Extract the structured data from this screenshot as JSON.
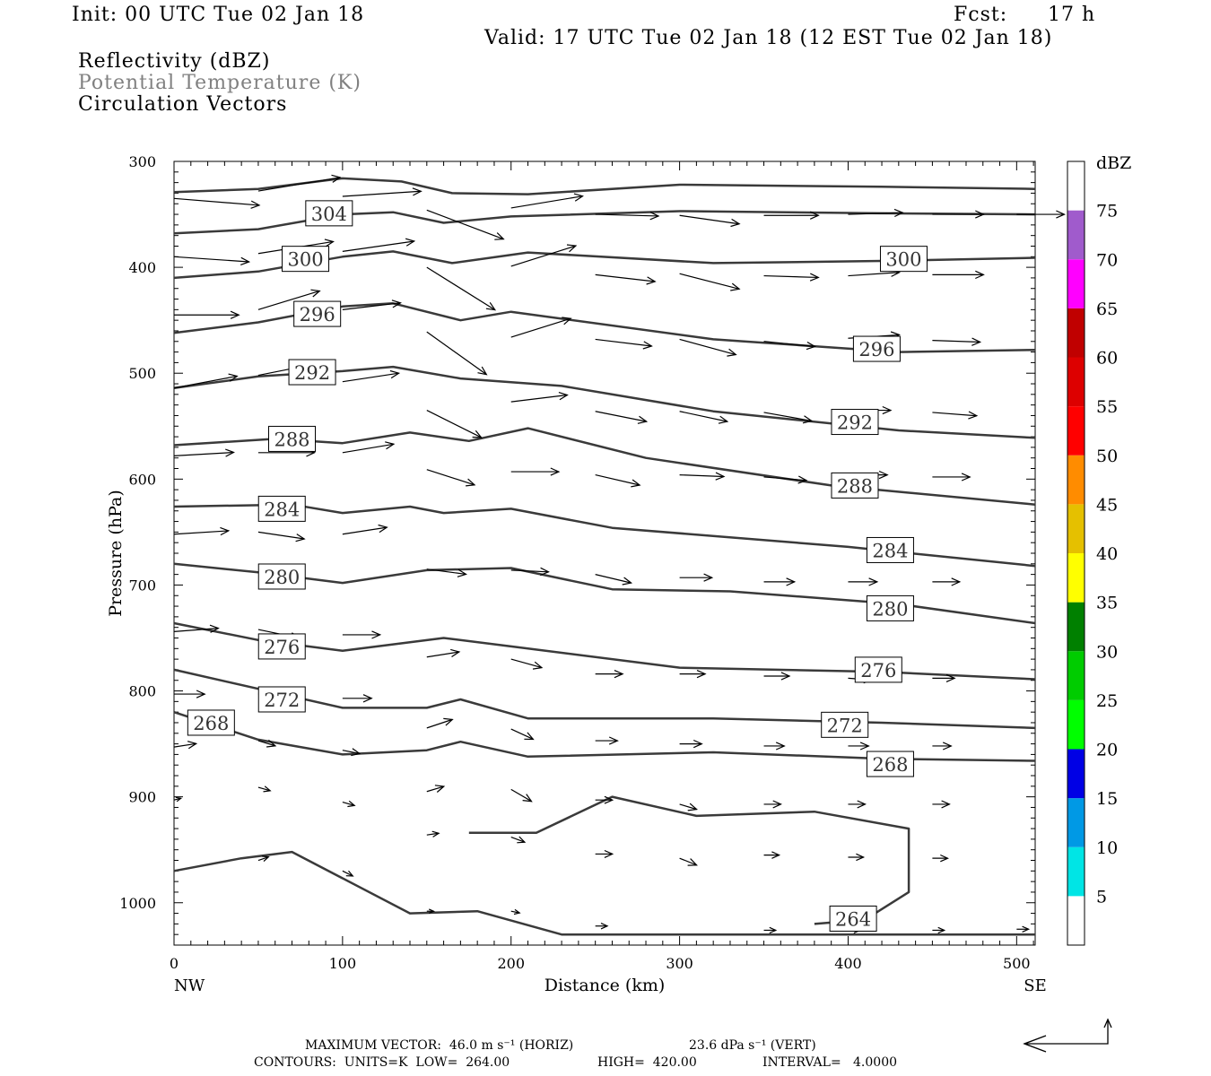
{
  "header": {
    "init": "Init: 00 UTC Tue 02 Jan 18",
    "fcst_label": "Fcst:",
    "fcst_value": "17 h",
    "valid": "Valid: 17 UTC Tue 02 Jan 18 (12 EST Tue 02 Jan 18)",
    "fields": [
      "Reflectivity (dBZ)",
      "Potential Temperature (K)",
      "Circulation Vectors"
    ]
  },
  "colorbar": {
    "title": "dBZ",
    "levels": [
      "5",
      "10",
      "15",
      "20",
      "25",
      "30",
      "35",
      "40",
      "45",
      "50",
      "55",
      "60",
      "65",
      "70",
      "75"
    ],
    "colors": [
      "#00e5e5",
      "#0099e5",
      "#0000e5",
      "#00ff00",
      "#00cc00",
      "#008000",
      "#ffff00",
      "#e5c000",
      "#ff8c00",
      "#ff0000",
      "#dd0000",
      "#c00000",
      "#ff00ff",
      "#a05bcc",
      "#ffffff"
    ]
  },
  "footer": {
    "max_vector": "MAXIMUM VECTOR:  46.0 m s⁻¹ (HORIZ)",
    "vert_vector": "23.6 dPa s⁻¹ (VERT)",
    "contours": "CONTOURS:  UNITS=K  LOW=  264.00",
    "high": "HIGH=  420.00",
    "interval": "INTERVAL=   4.0000"
  },
  "chart_data": {
    "type": "line",
    "xlabel": "Distance (km)",
    "ylabel": "Pressure (hPa)",
    "xlim": [
      0,
      511
    ],
    "ylim": [
      1040,
      300
    ],
    "x_ticks": [
      "0",
      "100",
      "200",
      "300",
      "400",
      "500"
    ],
    "y_ticks": [
      "300",
      "400",
      "500",
      "600",
      "700",
      "800",
      "900",
      "1000"
    ],
    "x_end_labels": [
      "NW",
      "SE"
    ],
    "grid": false,
    "series": [
      {
        "name": "304",
        "values": [
          [
            0,
            329
          ],
          [
            50,
            326
          ],
          [
            100,
            316
          ],
          [
            135,
            319
          ],
          [
            165,
            330
          ],
          [
            210,
            331
          ],
          [
            300,
            322
          ],
          [
            420,
            324
          ],
          [
            511,
            326
          ]
        ]
      },
      {
        "name": "304",
        "values": [
          [
            0,
            368
          ],
          [
            50,
            364
          ],
          [
            100,
            350
          ],
          [
            130,
            348
          ],
          [
            160,
            358
          ],
          [
            200,
            352
          ],
          [
            300,
            347
          ],
          [
            420,
            349
          ],
          [
            511,
            350
          ]
        ]
      },
      {
        "name": "300",
        "values": [
          [
            0,
            410
          ],
          [
            50,
            404
          ],
          [
            100,
            390
          ],
          [
            130,
            385
          ],
          [
            165,
            396
          ],
          [
            210,
            386
          ],
          [
            320,
            396
          ],
          [
            420,
            394
          ],
          [
            511,
            391
          ]
        ]
      },
      {
        "name": "296",
        "values": [
          [
            0,
            462
          ],
          [
            50,
            452
          ],
          [
            100,
            437
          ],
          [
            130,
            434
          ],
          [
            170,
            450
          ],
          [
            200,
            442
          ],
          [
            320,
            468
          ],
          [
            430,
            480
          ],
          [
            511,
            478
          ]
        ]
      },
      {
        "name": "292",
        "values": [
          [
            0,
            514
          ],
          [
            50,
            503
          ],
          [
            100,
            498
          ],
          [
            130,
            494
          ],
          [
            170,
            505
          ],
          [
            230,
            512
          ],
          [
            320,
            536
          ],
          [
            430,
            554
          ],
          [
            511,
            561
          ]
        ]
      },
      {
        "name": "288",
        "values": [
          [
            0,
            568
          ],
          [
            60,
            562
          ],
          [
            100,
            566
          ],
          [
            140,
            556
          ],
          [
            175,
            564
          ],
          [
            210,
            552
          ],
          [
            280,
            580
          ],
          [
            390,
            606
          ],
          [
            511,
            624
          ]
        ]
      },
      {
        "name": "284",
        "values": [
          [
            0,
            626
          ],
          [
            70,
            624
          ],
          [
            100,
            632
          ],
          [
            140,
            626
          ],
          [
            160,
            632
          ],
          [
            200,
            628
          ],
          [
            260,
            646
          ],
          [
            400,
            664
          ],
          [
            511,
            682
          ]
        ]
      },
      {
        "name": "280",
        "values": [
          [
            0,
            680
          ],
          [
            50,
            688
          ],
          [
            100,
            698
          ],
          [
            150,
            686
          ],
          [
            200,
            684
          ],
          [
            260,
            704
          ],
          [
            330,
            706
          ],
          [
            430,
            718
          ],
          [
            511,
            736
          ]
        ]
      },
      {
        "name": "276",
        "values": [
          [
            0,
            736
          ],
          [
            50,
            752
          ],
          [
            100,
            762
          ],
          [
            160,
            750
          ],
          [
            200,
            758
          ],
          [
            300,
            778
          ],
          [
            420,
            782
          ],
          [
            511,
            789
          ]
        ]
      },
      {
        "name": "272",
        "values": [
          [
            0,
            780
          ],
          [
            50,
            798
          ],
          [
            100,
            816
          ],
          [
            150,
            816
          ],
          [
            170,
            808
          ],
          [
            210,
            826
          ],
          [
            320,
            826
          ],
          [
            420,
            830
          ],
          [
            511,
            835
          ]
        ]
      },
      {
        "name": "268",
        "values": [
          [
            0,
            820
          ],
          [
            50,
            846
          ],
          [
            100,
            860
          ],
          [
            150,
            856
          ],
          [
            170,
            848
          ],
          [
            210,
            862
          ],
          [
            320,
            858
          ],
          [
            420,
            864
          ],
          [
            511,
            866
          ]
        ]
      },
      {
        "name": "264",
        "values": [
          [
            0,
            970
          ],
          [
            40,
            958
          ],
          [
            70,
            952
          ],
          [
            140,
            1010
          ],
          [
            180,
            1008
          ],
          [
            230,
            1030
          ],
          [
            380,
            1030
          ],
          [
            511,
            1030
          ]
        ]
      },
      {
        "name": "264",
        "values": [
          [
            175,
            934
          ],
          [
            215,
            934
          ],
          [
            260,
            900
          ],
          [
            310,
            918
          ],
          [
            380,
            914
          ],
          [
            436,
            930
          ],
          [
            436,
            990
          ],
          [
            410,
            1016
          ],
          [
            380,
            1020
          ]
        ]
      }
    ],
    "contour_labels": [
      {
        "text": "304",
        "x": 92,
        "y": 349
      },
      {
        "text": "300",
        "x": 78,
        "y": 392
      },
      {
        "text": "300",
        "x": 433,
        "y": 392
      },
      {
        "text": "296",
        "x": 85,
        "y": 444
      },
      {
        "text": "296",
        "x": 417,
        "y": 477
      },
      {
        "text": "292",
        "x": 82,
        "y": 499
      },
      {
        "text": "292",
        "x": 404,
        "y": 546
      },
      {
        "text": "288",
        "x": 70,
        "y": 562
      },
      {
        "text": "288",
        "x": 404,
        "y": 606
      },
      {
        "text": "284",
        "x": 64,
        "y": 628
      },
      {
        "text": "284",
        "x": 425,
        "y": 667
      },
      {
        "text": "280",
        "x": 64,
        "y": 692
      },
      {
        "text": "280",
        "x": 425,
        "y": 722
      },
      {
        "text": "276",
        "x": 64,
        "y": 758
      },
      {
        "text": "276",
        "x": 418,
        "y": 780
      },
      {
        "text": "272",
        "x": 64,
        "y": 808
      },
      {
        "text": "272",
        "x": 398,
        "y": 832
      },
      {
        "text": "268",
        "x": 22,
        "y": 830
      },
      {
        "text": "268",
        "x": 425,
        "y": 869
      },
      {
        "text": "264",
        "x": 403,
        "y": 1015
      }
    ],
    "vectors": [
      {
        "x": 0,
        "y": 335,
        "u": 50,
        "v": 4
      },
      {
        "x": 50,
        "y": 328,
        "u": 48,
        "v": -8
      },
      {
        "x": 100,
        "y": 333,
        "u": 46,
        "v": -3
      },
      {
        "x": 150,
        "y": 346,
        "u": 45,
        "v": 17
      },
      {
        "x": 200,
        "y": 344,
        "u": 42,
        "v": -7
      },
      {
        "x": 250,
        "y": 350,
        "u": 37,
        "v": 1
      },
      {
        "x": 300,
        "y": 351,
        "u": 35,
        "v": 5
      },
      {
        "x": 350,
        "y": 351,
        "u": 32,
        "v": 0
      },
      {
        "x": 400,
        "y": 350,
        "u": 32,
        "v": -1
      },
      {
        "x": 450,
        "y": 350,
        "u": 30,
        "v": 0
      },
      {
        "x": 500,
        "y": 350,
        "u": 28,
        "v": 0
      },
      {
        "x": 0,
        "y": 390,
        "u": 44,
        "v": 3
      },
      {
        "x": 50,
        "y": 387,
        "u": 44,
        "v": -7
      },
      {
        "x": 100,
        "y": 385,
        "u": 42,
        "v": -6
      },
      {
        "x": 150,
        "y": 400,
        "u": 40,
        "v": 25
      },
      {
        "x": 200,
        "y": 399,
        "u": 38,
        "v": -12
      },
      {
        "x": 250,
        "y": 407,
        "u": 35,
        "v": 4
      },
      {
        "x": 300,
        "y": 406,
        "u": 35,
        "v": 9
      },
      {
        "x": 350,
        "y": 408,
        "u": 32,
        "v": 1
      },
      {
        "x": 400,
        "y": 408,
        "u": 30,
        "v": -2
      },
      {
        "x": 450,
        "y": 407,
        "u": 30,
        "v": 0
      },
      {
        "x": 0,
        "y": 445,
        "u": 38,
        "v": 0
      },
      {
        "x": 50,
        "y": 440,
        "u": 36,
        "v": -11
      },
      {
        "x": 100,
        "y": 440,
        "u": 34,
        "v": -4
      },
      {
        "x": 150,
        "y": 461,
        "u": 35,
        "v": 25
      },
      {
        "x": 200,
        "y": 466,
        "u": 35,
        "v": -11
      },
      {
        "x": 250,
        "y": 468,
        "u": 33,
        "v": 4
      },
      {
        "x": 300,
        "y": 468,
        "u": 33,
        "v": 9
      },
      {
        "x": 350,
        "y": 470,
        "u": 30,
        "v": 3
      },
      {
        "x": 400,
        "y": 467,
        "u": 30,
        "v": -2
      },
      {
        "x": 450,
        "y": 469,
        "u": 28,
        "v": 1
      },
      {
        "x": 0,
        "y": 514,
        "u": 37,
        "v": -7
      },
      {
        "x": 50,
        "y": 502,
        "u": 35,
        "v": -7
      },
      {
        "x": 100,
        "y": 508,
        "u": 33,
        "v": -5
      },
      {
        "x": 150,
        "y": 535,
        "u": 32,
        "v": 16
      },
      {
        "x": 200,
        "y": 527,
        "u": 33,
        "v": -4
      },
      {
        "x": 250,
        "y": 536,
        "u": 30,
        "v": 6
      },
      {
        "x": 300,
        "y": 536,
        "u": 28,
        "v": 6
      },
      {
        "x": 350,
        "y": 537,
        "u": 28,
        "v": 5
      },
      {
        "x": 400,
        "y": 535,
        "u": 25,
        "v": 0
      },
      {
        "x": 450,
        "y": 537,
        "u": 26,
        "v": 2
      },
      {
        "x": 0,
        "y": 578,
        "u": 35,
        "v": -2
      },
      {
        "x": 50,
        "y": 575,
        "u": 33,
        "v": 0
      },
      {
        "x": 100,
        "y": 575,
        "u": 30,
        "v": -5
      },
      {
        "x": 150,
        "y": 591,
        "u": 28,
        "v": 9
      },
      {
        "x": 200,
        "y": 593,
        "u": 28,
        "v": 0
      },
      {
        "x": 250,
        "y": 596,
        "u": 26,
        "v": 6
      },
      {
        "x": 300,
        "y": 596,
        "u": 26,
        "v": 1
      },
      {
        "x": 350,
        "y": 598,
        "u": 25,
        "v": 2
      },
      {
        "x": 400,
        "y": 596,
        "u": 23,
        "v": 0
      },
      {
        "x": 450,
        "y": 598,
        "u": 22,
        "v": 0
      },
      {
        "x": 0,
        "y": 652,
        "u": 32,
        "v": -2
      },
      {
        "x": 50,
        "y": 650,
        "u": 27,
        "v": 4
      },
      {
        "x": 100,
        "y": 652,
        "u": 26,
        "v": -4
      },
      {
        "x": 150,
        "y": 685,
        "u": 23,
        "v": 3
      },
      {
        "x": 200,
        "y": 686,
        "u": 22,
        "v": 1
      },
      {
        "x": 250,
        "y": 690,
        "u": 21,
        "v": 5
      },
      {
        "x": 300,
        "y": 693,
        "u": 19,
        "v": 0
      },
      {
        "x": 350,
        "y": 697,
        "u": 18,
        "v": 0
      },
      {
        "x": 400,
        "y": 697,
        "u": 17,
        "v": 0
      },
      {
        "x": 450,
        "y": 697,
        "u": 16,
        "v": 0
      },
      {
        "x": 0,
        "y": 744,
        "u": 26,
        "v": -2
      },
      {
        "x": 50,
        "y": 742,
        "u": 24,
        "v": 5
      },
      {
        "x": 100,
        "y": 747,
        "u": 22,
        "v": 0
      },
      {
        "x": 150,
        "y": 768,
        "u": 19,
        "v": -3
      },
      {
        "x": 200,
        "y": 770,
        "u": 18,
        "v": 5
      },
      {
        "x": 250,
        "y": 784,
        "u": 16,
        "v": 0
      },
      {
        "x": 300,
        "y": 784,
        "u": 15,
        "v": 0
      },
      {
        "x": 350,
        "y": 786,
        "u": 15,
        "v": 0
      },
      {
        "x": 400,
        "y": 788,
        "u": 14,
        "v": 1
      },
      {
        "x": 450,
        "y": 788,
        "u": 13,
        "v": 0
      },
      {
        "x": 0,
        "y": 803,
        "u": 18,
        "v": 0
      },
      {
        "x": 50,
        "y": 803,
        "u": 17,
        "v": 0
      },
      {
        "x": 100,
        "y": 807,
        "u": 17,
        "v": 0
      },
      {
        "x": 150,
        "y": 835,
        "u": 15,
        "v": -5
      },
      {
        "x": 200,
        "y": 836,
        "u": 13,
        "v": 6
      },
      {
        "x": 250,
        "y": 847,
        "u": 13,
        "v": 0
      },
      {
        "x": 300,
        "y": 850,
        "u": 13,
        "v": 0
      },
      {
        "x": 350,
        "y": 852,
        "u": 12,
        "v": 0
      },
      {
        "x": 400,
        "y": 852,
        "u": 12,
        "v": 0
      },
      {
        "x": 450,
        "y": 852,
        "u": 11,
        "v": 0
      },
      {
        "x": 0,
        "y": 853,
        "u": 13,
        "v": -2
      },
      {
        "x": 50,
        "y": 847,
        "u": 10,
        "v": 3
      },
      {
        "x": 100,
        "y": 856,
        "u": 10,
        "v": 2
      },
      {
        "x": 150,
        "y": 895,
        "u": 10,
        "v": -3
      },
      {
        "x": 200,
        "y": 893,
        "u": 12,
        "v": 7
      },
      {
        "x": 250,
        "y": 903,
        "u": 10,
        "v": 0
      },
      {
        "x": 300,
        "y": 907,
        "u": 10,
        "v": 3
      },
      {
        "x": 350,
        "y": 907,
        "u": 10,
        "v": 0
      },
      {
        "x": 400,
        "y": 907,
        "u": 10,
        "v": 0
      },
      {
        "x": 450,
        "y": 907,
        "u": 10,
        "v": 0
      },
      {
        "x": 0,
        "y": 903,
        "u": 4,
        "v": -1
      },
      {
        "x": 50,
        "y": 891,
        "u": 7,
        "v": 2
      },
      {
        "x": 100,
        "y": 905,
        "u": 7,
        "v": 2
      },
      {
        "x": 150,
        "y": 936,
        "u": 7,
        "v": -1
      },
      {
        "x": 200,
        "y": 938,
        "u": 8,
        "v": 3
      },
      {
        "x": 250,
        "y": 954,
        "u": 10,
        "v": 0
      },
      {
        "x": 300,
        "y": 958,
        "u": 10,
        "v": 4
      },
      {
        "x": 350,
        "y": 955,
        "u": 9,
        "v": 0
      },
      {
        "x": 400,
        "y": 957,
        "u": 9,
        "v": 0
      },
      {
        "x": 450,
        "y": 958,
        "u": 9,
        "v": 0
      },
      {
        "x": 50,
        "y": 960,
        "u": 6,
        "v": -2
      },
      {
        "x": 100,
        "y": 970,
        "u": 6,
        "v": 3
      },
      {
        "x": 150,
        "y": 1008,
        "u": 4,
        "v": 0
      },
      {
        "x": 200,
        "y": 1008,
        "u": 5,
        "v": 1
      },
      {
        "x": 250,
        "y": 1022,
        "u": 7,
        "v": 0
      },
      {
        "x": 350,
        "y": 1026,
        "u": 7,
        "v": 0
      },
      {
        "x": 400,
        "y": 1026,
        "u": 7,
        "v": 0
      },
      {
        "x": 450,
        "y": 1026,
        "u": 7,
        "v": 0
      },
      {
        "x": 500,
        "y": 1025,
        "u": 7,
        "v": 0
      }
    ]
  }
}
